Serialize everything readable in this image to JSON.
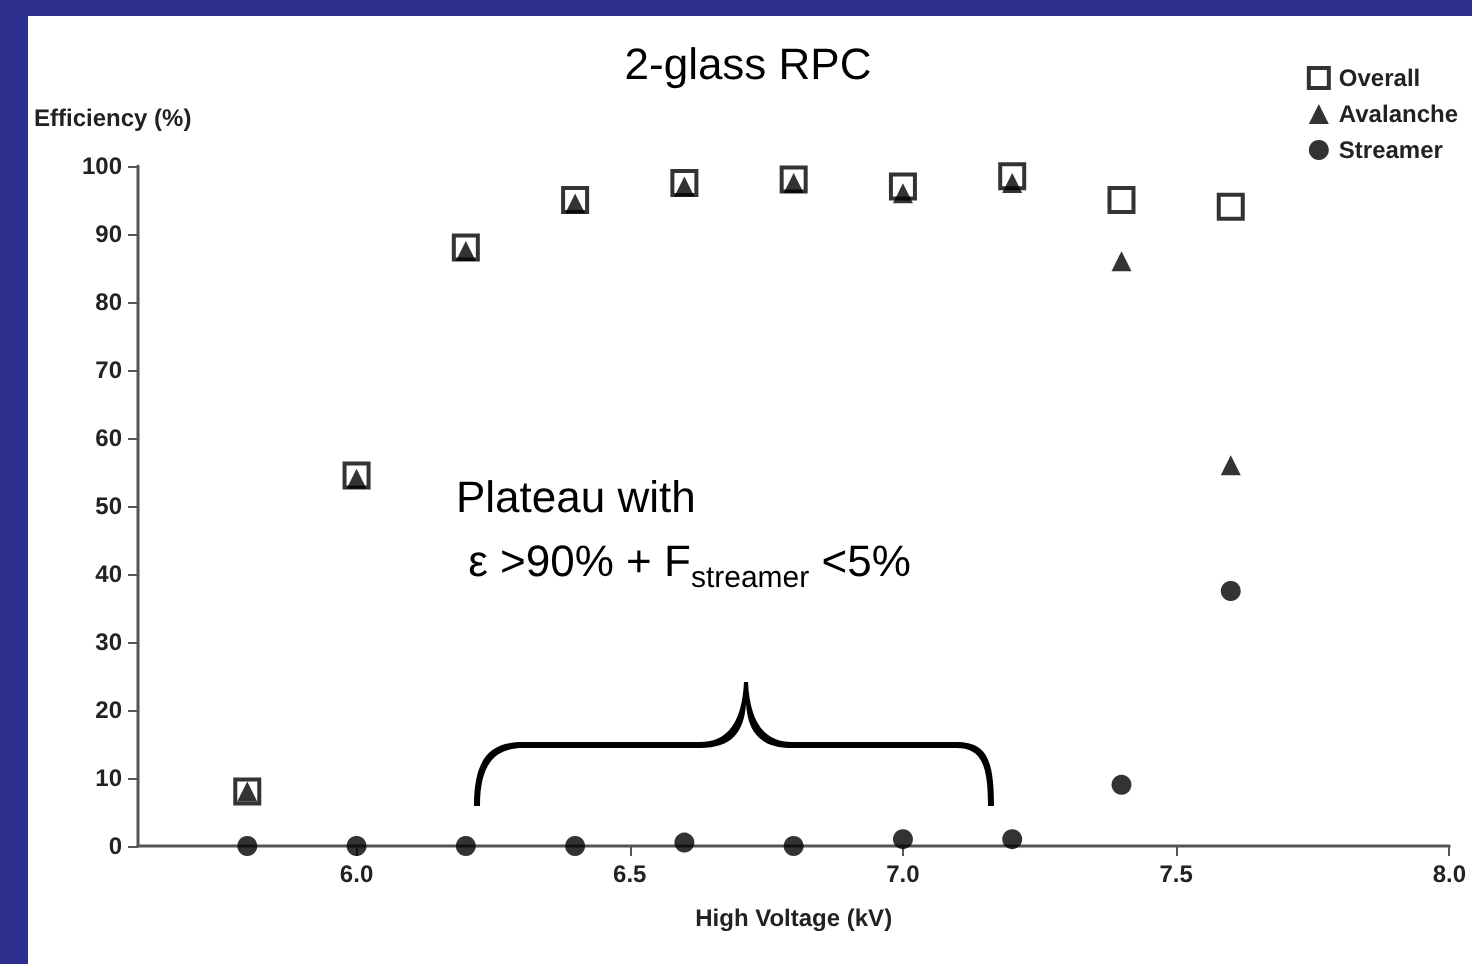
{
  "chart_data": {
    "type": "scatter",
    "title": "2-glass RPC",
    "xlabel": "High Voltage (kV)",
    "ylabel": "Efficiency (%)",
    "x": [
      5.8,
      6.0,
      6.2,
      6.4,
      6.6,
      6.8,
      7.0,
      7.2,
      7.4,
      7.6
    ],
    "series": [
      {
        "name": "Overall",
        "color": "#000000",
        "marker": "square",
        "values": [
          8,
          54.5,
          88,
          95,
          97.5,
          98,
          97,
          98.5,
          95,
          94
        ]
      },
      {
        "name": "Avalanche",
        "color": "#000000",
        "marker": "triangle",
        "values": [
          8,
          54,
          87.5,
          94.5,
          97,
          97.5,
          96,
          97.5,
          86,
          56
        ]
      },
      {
        "name": "Streamer",
        "color": "#000000",
        "marker": "circle",
        "values": [
          0,
          0,
          0,
          0,
          0.5,
          0,
          1,
          1,
          9,
          37.5
        ]
      }
    ],
    "xlim": [
      5.6,
      8.0
    ],
    "xticks": [
      {
        "value": 6.0,
        "label": "6.0"
      },
      6.5,
      {
        "value": 7.0,
        "label": "7.0"
      },
      7.5,
      {
        "value": 8.0,
        "label": "8.0"
      }
    ],
    "ylim": [
      0,
      100
    ],
    "yticks": [
      0,
      10,
      20,
      30,
      40,
      50,
      60,
      70,
      80,
      90,
      100
    ],
    "grid": false,
    "legend": "top right",
    "annotations": [
      "Plateau with\n ε >90% + F$_{streamer}$ <5%"
    ]
  }
}
